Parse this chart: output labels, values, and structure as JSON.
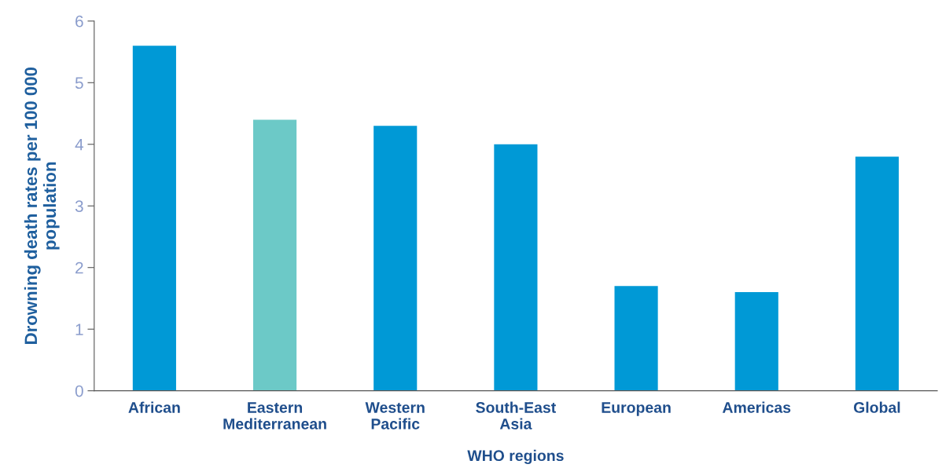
{
  "chart_data": {
    "type": "bar",
    "categories": [
      "African",
      "Eastern\nMediterranean",
      "Western\nPacific",
      "South-East\nAsia",
      "European",
      "Americas",
      "Global"
    ],
    "values": [
      5.6,
      4.4,
      4.3,
      4.0,
      1.7,
      1.6,
      3.8
    ],
    "colors": [
      "#0099d6",
      "#6cc9c7",
      "#0099d6",
      "#0099d6",
      "#0099d6",
      "#0099d6",
      "#0099d6"
    ],
    "xlabel": "WHO regions",
    "ylabel": "Drowning death rates per 100 000\npopulation",
    "ylim": [
      0,
      6
    ],
    "yticks": [
      0,
      1,
      2,
      3,
      4,
      5,
      6
    ],
    "grid": false
  }
}
